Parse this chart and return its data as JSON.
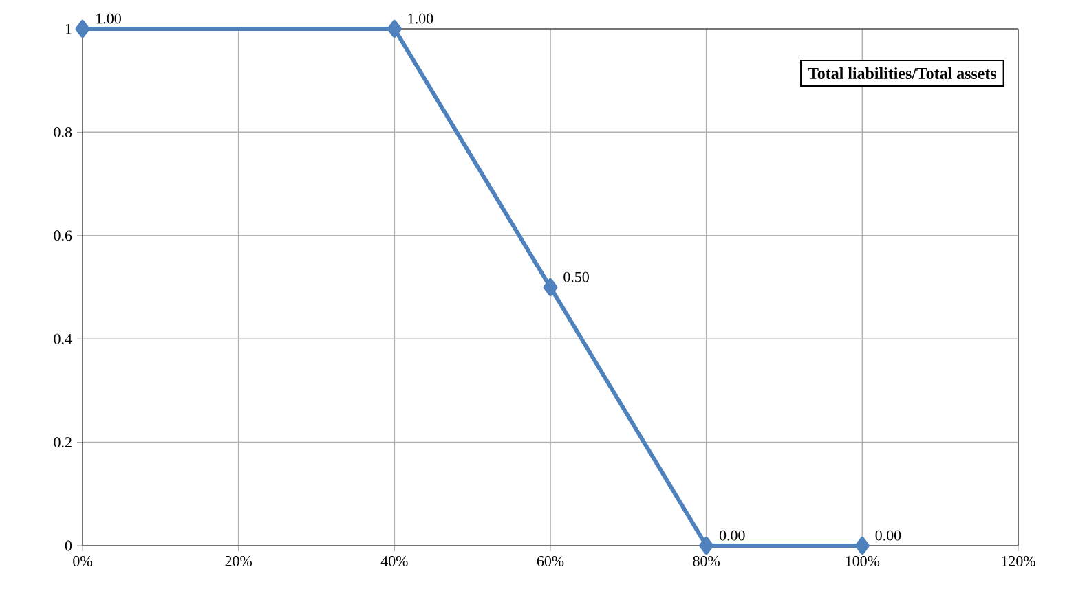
{
  "chart_data": {
    "type": "line",
    "title": "Total liabilities/Total assets",
    "x": [
      0,
      40,
      60,
      80,
      100
    ],
    "series": [
      {
        "color": "#4f81bd",
        "values": [
          1,
          1,
          0.5,
          0,
          0
        ],
        "value_labels": [
          "1.00",
          "1.00",
          "0.50",
          "0.00",
          "0.00"
        ]
      }
    ],
    "xlim": [
      0,
      120
    ],
    "xticks": [
      {
        "value": 0,
        "label": "0%"
      },
      {
        "value": 20,
        "label": "20%"
      },
      {
        "value": 40,
        "label": "40%"
      },
      {
        "value": 60,
        "label": "60%"
      },
      {
        "value": 80,
        "label": "80%"
      },
      {
        "value": 100,
        "label": "100%"
      },
      {
        "value": 120,
        "label": "120%"
      }
    ],
    "ylim": [
      0,
      1
    ],
    "yticks": [
      0,
      0.2,
      0.4,
      0.6,
      0.8,
      1
    ],
    "grid": true,
    "marker": "diamond",
    "line_style": "solid"
  }
}
